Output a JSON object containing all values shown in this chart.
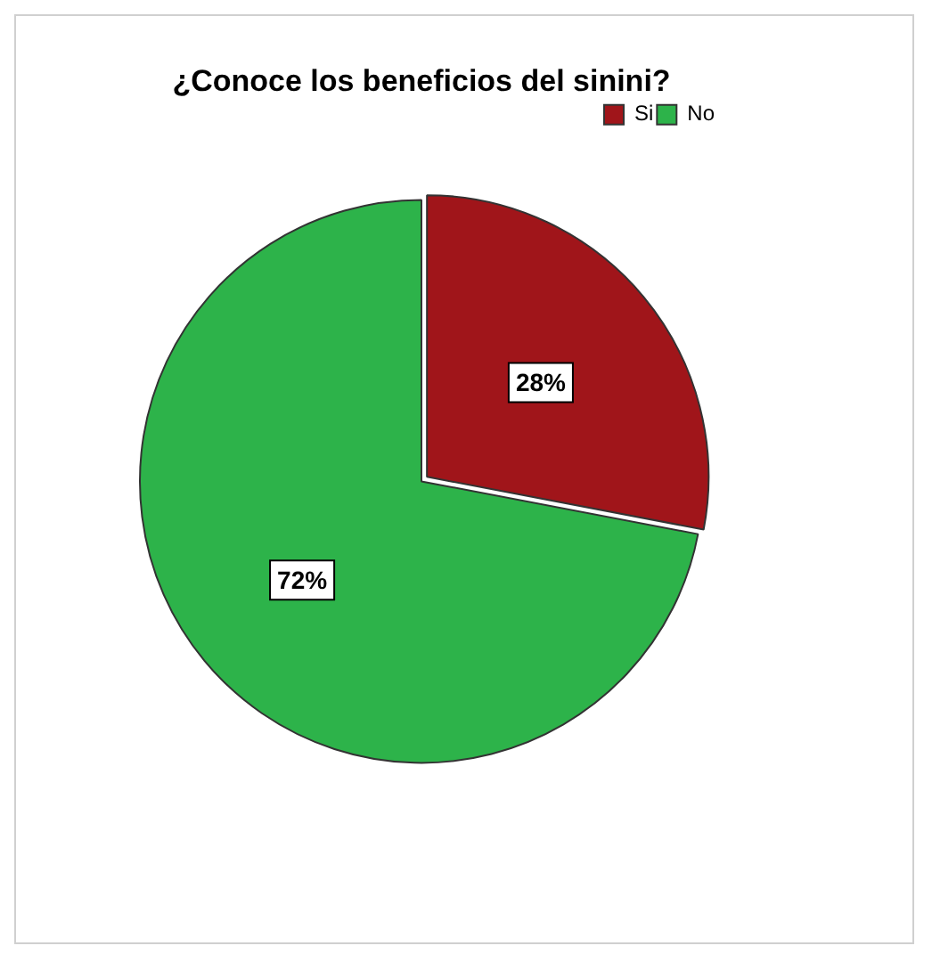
{
  "chart_data": {
    "type": "pie",
    "title": "¿Conoce los beneficios del sinini?",
    "categories": [
      "Si",
      "No"
    ],
    "values": [
      28,
      72
    ],
    "colors": [
      "#a0151a",
      "#2db34a"
    ],
    "value_labels": [
      "28%",
      "72%"
    ],
    "legend": "top right"
  }
}
